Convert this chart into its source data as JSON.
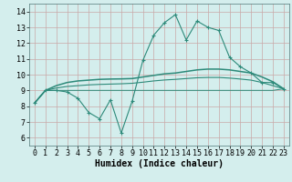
{
  "x_values": [
    0,
    1,
    2,
    3,
    4,
    5,
    6,
    7,
    8,
    9,
    10,
    11,
    12,
    13,
    14,
    15,
    16,
    17,
    18,
    19,
    20,
    21,
    22,
    23
  ],
  "line_jagged": [
    8.2,
    9.0,
    9.0,
    8.9,
    8.5,
    7.6,
    7.2,
    8.4,
    6.3,
    8.3,
    10.9,
    12.5,
    13.3,
    13.8,
    12.2,
    13.4,
    13.0,
    12.8,
    11.1,
    10.5,
    10.1,
    9.5,
    9.5,
    9.1
  ],
  "line_upper": [
    8.2,
    9.0,
    9.3,
    9.5,
    9.6,
    9.65,
    9.7,
    9.72,
    9.73,
    9.75,
    9.85,
    9.95,
    10.05,
    10.1,
    10.2,
    10.3,
    10.35,
    10.35,
    10.3,
    10.2,
    10.1,
    9.85,
    9.55,
    9.1
  ],
  "line_mid": [
    8.2,
    9.0,
    9.15,
    9.25,
    9.3,
    9.35,
    9.38,
    9.4,
    9.42,
    9.45,
    9.52,
    9.6,
    9.66,
    9.7,
    9.75,
    9.8,
    9.82,
    9.82,
    9.78,
    9.72,
    9.65,
    9.5,
    9.3,
    9.1
  ],
  "line_lower": [
    8.2,
    9.0,
    9.0,
    9.0,
    9.0,
    9.0,
    9.0,
    9.0,
    9.0,
    9.0,
    9.0,
    9.0,
    9.0,
    9.0,
    9.0,
    9.0,
    9.0,
    9.0,
    9.0,
    9.0,
    9.0,
    9.0,
    9.0,
    9.1
  ],
  "line_color": "#2d8a7a",
  "bg_color": "#d4eeed",
  "grid_color": "#c9a8a8",
  "xlabel": "Humidex (Indice chaleur)",
  "xlim": [
    -0.5,
    23.5
  ],
  "ylim": [
    5.5,
    14.5
  ],
  "yticks": [
    6,
    7,
    8,
    9,
    10,
    11,
    12,
    13,
    14
  ],
  "xticks": [
    0,
    1,
    2,
    3,
    4,
    5,
    6,
    7,
    8,
    9,
    10,
    11,
    12,
    13,
    14,
    15,
    16,
    17,
    18,
    19,
    20,
    21,
    22,
    23
  ],
  "xlabel_fontsize": 7,
  "tick_fontsize": 6,
  "lw_jagged": 0.8,
  "lw_upper": 1.1,
  "lw_mid": 0.8,
  "lw_lower": 0.7
}
